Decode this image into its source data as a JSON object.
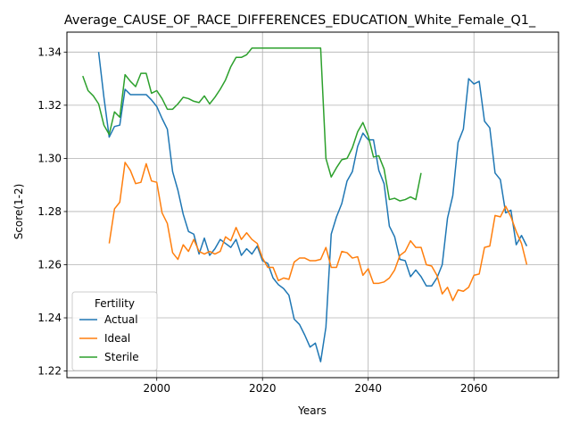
{
  "chart_data": {
    "type": "line",
    "title": "Average_CAUSE_OF_RACE_DIFFERENCES_EDUCATION_White_Female_Q1_",
    "xlabel": "Years",
    "ylabel": "Score(1-2)",
    "xlim": [
      1983,
      2076
    ],
    "ylim": [
      1.2175,
      1.3475
    ],
    "xticks": [
      2000,
      2020,
      2040,
      2060
    ],
    "yticks": [
      1.22,
      1.24,
      1.26,
      1.28,
      1.3,
      1.32,
      1.34
    ],
    "grid": true,
    "legend": {
      "title": "Fertility",
      "placement": "lower-left"
    },
    "series": [
      {
        "name": "Actual",
        "color": "#1f77b4",
        "points": [
          [
            1989,
            1.34
          ],
          [
            1990,
            1.323
          ],
          [
            1991,
            1.308
          ],
          [
            1992,
            1.312
          ],
          [
            1993,
            1.3125
          ],
          [
            1994,
            1.326
          ],
          [
            1995,
            1.324
          ],
          [
            1996,
            1.324
          ],
          [
            1997,
            1.324
          ],
          [
            1998,
            1.324
          ],
          [
            1999,
            1.322
          ],
          [
            2000,
            1.3195
          ],
          [
            2001,
            1.315
          ],
          [
            2002,
            1.311
          ],
          [
            2003,
            1.295
          ],
          [
            2004,
            1.288
          ],
          [
            2005,
            1.279
          ],
          [
            2006,
            1.2725
          ],
          [
            2007,
            1.2715
          ],
          [
            2008,
            1.264
          ],
          [
            2009,
            1.27
          ],
          [
            2010,
            1.2635
          ],
          [
            2011,
            1.266
          ],
          [
            2012,
            1.2695
          ],
          [
            2013,
            1.268
          ],
          [
            2014,
            1.2665
          ],
          [
            2015,
            1.2695
          ],
          [
            2016,
            1.2635
          ],
          [
            2017,
            1.266
          ],
          [
            2018,
            1.264
          ],
          [
            2019,
            1.267
          ],
          [
            2020,
            1.2615
          ],
          [
            2021,
            1.2605
          ],
          [
            2022,
            1.255
          ],
          [
            2023,
            1.2525
          ],
          [
            2024,
            1.251
          ],
          [
            2025,
            1.2485
          ],
          [
            2026,
            1.2395
          ],
          [
            2027,
            1.2375
          ],
          [
            2028,
            1.2335
          ],
          [
            2029,
            1.229
          ],
          [
            2030,
            1.2305
          ],
          [
            2031,
            1.2235
          ],
          [
            2032,
            1.2365
          ],
          [
            2033,
            1.2715
          ],
          [
            2034,
            1.278
          ],
          [
            2035,
            1.283
          ],
          [
            2036,
            1.2915
          ],
          [
            2037,
            1.295
          ],
          [
            2038,
            1.3045
          ],
          [
            2039,
            1.3095
          ],
          [
            2040,
            1.307
          ],
          [
            2041,
            1.307
          ],
          [
            2042,
            1.2955
          ],
          [
            2043,
            1.2905
          ],
          [
            2044,
            1.2745
          ],
          [
            2045,
            1.2705
          ],
          [
            2046,
            1.262
          ],
          [
            2047,
            1.2615
          ],
          [
            2048,
            1.2555
          ],
          [
            2049,
            1.258
          ],
          [
            2050,
            1.2555
          ],
          [
            2051,
            1.252
          ],
          [
            2052,
            1.252
          ],
          [
            2053,
            1.255
          ],
          [
            2054,
            1.26
          ],
          [
            2055,
            1.2775
          ],
          [
            2056,
            1.286
          ],
          [
            2057,
            1.306
          ],
          [
            2058,
            1.311
          ],
          [
            2059,
            1.33
          ],
          [
            2060,
            1.328
          ],
          [
            2061,
            1.329
          ],
          [
            2062,
            1.314
          ],
          [
            2063,
            1.3115
          ],
          [
            2064,
            1.2945
          ],
          [
            2065,
            1.292
          ],
          [
            2066,
            1.2795
          ],
          [
            2067,
            1.2805
          ],
          [
            2068,
            1.2675
          ],
          [
            2069,
            1.271
          ],
          [
            2070,
            1.267
          ]
        ]
      },
      {
        "name": "Ideal",
        "color": "#ff7f0e",
        "points": [
          [
            1991,
            1.268
          ],
          [
            1992,
            1.281
          ],
          [
            1993,
            1.2835
          ],
          [
            1994,
            1.2985
          ],
          [
            1995,
            1.2955
          ],
          [
            1996,
            1.2905
          ],
          [
            1997,
            1.291
          ],
          [
            1998,
            1.298
          ],
          [
            1999,
            1.2915
          ],
          [
            2000,
            1.291
          ],
          [
            2001,
            1.2795
          ],
          [
            2002,
            1.2755
          ],
          [
            2003,
            1.2645
          ],
          [
            2004,
            1.262
          ],
          [
            2005,
            1.2675
          ],
          [
            2006,
            1.265
          ],
          [
            2007,
            1.2695
          ],
          [
            2008,
            1.265
          ],
          [
            2009,
            1.264
          ],
          [
            2010,
            1.265
          ],
          [
            2011,
            1.264
          ],
          [
            2012,
            1.265
          ],
          [
            2013,
            1.2705
          ],
          [
            2014,
            1.269
          ],
          [
            2015,
            1.274
          ],
          [
            2016,
            1.2695
          ],
          [
            2017,
            1.272
          ],
          [
            2018,
            1.2695
          ],
          [
            2019,
            1.268
          ],
          [
            2020,
            1.2625
          ],
          [
            2021,
            1.259
          ],
          [
            2022,
            1.259
          ],
          [
            2023,
            1.254
          ],
          [
            2024,
            1.255
          ],
          [
            2025,
            1.2545
          ],
          [
            2026,
            1.261
          ],
          [
            2027,
            1.2625
          ],
          [
            2028,
            1.2625
          ],
          [
            2029,
            1.2615
          ],
          [
            2030,
            1.2615
          ],
          [
            2031,
            1.262
          ],
          [
            2032,
            1.2665
          ],
          [
            2033,
            1.259
          ],
          [
            2034,
            1.259
          ],
          [
            2035,
            1.265
          ],
          [
            2036,
            1.2645
          ],
          [
            2037,
            1.2625
          ],
          [
            2038,
            1.263
          ],
          [
            2039,
            1.256
          ],
          [
            2040,
            1.2585
          ],
          [
            2041,
            1.253
          ],
          [
            2042,
            1.253
          ],
          [
            2043,
            1.2535
          ],
          [
            2044,
            1.255
          ],
          [
            2045,
            1.258
          ],
          [
            2046,
            1.2635
          ],
          [
            2047,
            1.265
          ],
          [
            2048,
            1.269
          ],
          [
            2049,
            1.2665
          ],
          [
            2050,
            1.2665
          ],
          [
            2051,
            1.26
          ],
          [
            2052,
            1.2595
          ],
          [
            2053,
            1.256
          ],
          [
            2054,
            1.249
          ],
          [
            2055,
            1.2515
          ],
          [
            2056,
            1.2465
          ],
          [
            2057,
            1.2505
          ],
          [
            2058,
            1.25
          ],
          [
            2059,
            1.2515
          ],
          [
            2060,
            1.256
          ],
          [
            2061,
            1.2565
          ],
          [
            2062,
            1.2665
          ],
          [
            2063,
            1.267
          ],
          [
            2064,
            1.2785
          ],
          [
            2065,
            1.278
          ],
          [
            2066,
            1.282
          ],
          [
            2067,
            1.278
          ],
          [
            2068,
            1.2725
          ],
          [
            2069,
            1.268
          ],
          [
            2070,
            1.26
          ]
        ]
      },
      {
        "name": "Sterile",
        "color": "#2ca02c",
        "points": [
          [
            1986,
            1.331
          ],
          [
            1987,
            1.3255
          ],
          [
            1988,
            1.3235
          ],
          [
            1989,
            1.3205
          ],
          [
            1990,
            1.3125
          ],
          [
            1991,
            1.309
          ],
          [
            1992,
            1.3175
          ],
          [
            1993,
            1.3155
          ],
          [
            1994,
            1.3315
          ],
          [
            1995,
            1.329
          ],
          [
            1996,
            1.327
          ],
          [
            1997,
            1.332
          ],
          [
            1998,
            1.332
          ],
          [
            1999,
            1.3245
          ],
          [
            2000,
            1.3255
          ],
          [
            2001,
            1.3225
          ],
          [
            2002,
            1.3185
          ],
          [
            2003,
            1.3185
          ],
          [
            2004,
            1.3205
          ],
          [
            2005,
            1.323
          ],
          [
            2006,
            1.3225
          ],
          [
            2007,
            1.3215
          ],
          [
            2008,
            1.321
          ],
          [
            2009,
            1.3235
          ],
          [
            2010,
            1.3205
          ],
          [
            2011,
            1.323
          ],
          [
            2012,
            1.326
          ],
          [
            2013,
            1.3295
          ],
          [
            2014,
            1.3345
          ],
          [
            2015,
            1.338
          ],
          [
            2016,
            1.338
          ],
          [
            2017,
            1.339
          ],
          [
            2018,
            1.3415
          ],
          [
            2019,
            1.3415
          ],
          [
            2020,
            1.3415
          ],
          [
            2021,
            1.3415
          ],
          [
            2022,
            1.3415
          ],
          [
            2023,
            1.3415
          ],
          [
            2024,
            1.3415
          ],
          [
            2025,
            1.3415
          ],
          [
            2026,
            1.3415
          ],
          [
            2027,
            1.3415
          ],
          [
            2028,
            1.3415
          ],
          [
            2029,
            1.3415
          ],
          [
            2030,
            1.3415
          ],
          [
            2031,
            1.3415
          ],
          [
            2032,
            1.3
          ],
          [
            2033,
            1.293
          ],
          [
            2034,
            1.2965
          ],
          [
            2035,
            1.2995
          ],
          [
            2036,
            1.3
          ],
          [
            2037,
            1.304
          ],
          [
            2038,
            1.31
          ],
          [
            2039,
            1.3135
          ],
          [
            2040,
            1.3085
          ],
          [
            2041,
            1.3005
          ],
          [
            2042,
            1.301
          ],
          [
            2043,
            1.296
          ],
          [
            2044,
            1.2845
          ],
          [
            2045,
            1.285
          ],
          [
            2046,
            1.284
          ],
          [
            2047,
            1.2845
          ],
          [
            2048,
            1.2855
          ],
          [
            2049,
            1.2845
          ],
          [
            2050,
            1.2945
          ]
        ]
      }
    ]
  }
}
